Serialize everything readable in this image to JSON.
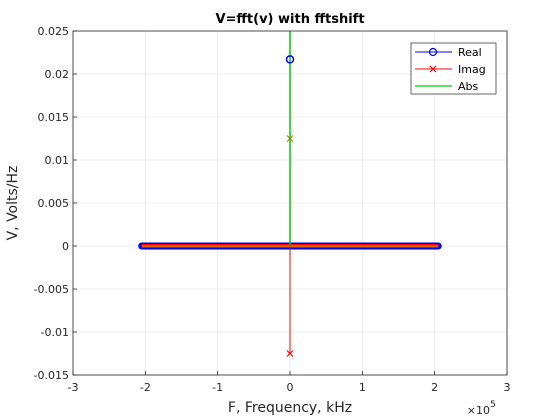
{
  "chart_data": {
    "type": "line",
    "title": "V=fft(v) with fftshift",
    "xlabel": "F, Frequency, kHz",
    "ylabel": "V, Volts/Hz",
    "x_exponent_label": "×10",
    "x_exponent_power": "5",
    "xlim": [
      -3,
      3
    ],
    "ylim": [
      -0.015,
      0.025
    ],
    "x_ticks": [
      -3,
      -2,
      -1,
      0,
      1,
      2,
      3
    ],
    "x_tick_labels": [
      "-3",
      "-2",
      "-1",
      "0",
      "1",
      "2",
      "3"
    ],
    "y_ticks": [
      -0.015,
      -0.01,
      -0.005,
      0,
      0.005,
      0.01,
      0.015,
      0.02,
      0.025
    ],
    "y_tick_labels": [
      "-0.015",
      "-0.01",
      "-0.005",
      "0",
      "0.005",
      "0.01",
      "0.015",
      "0.02",
      "0.025"
    ],
    "grid": true,
    "legend_position": "top-right",
    "x_range": [
      -2.05,
      2.05
    ],
    "series": [
      {
        "name": "Real",
        "color": "#0000ff",
        "marker": "circle",
        "baseline": 0,
        "spikes": [
          {
            "x": 0,
            "y": 0.0217
          }
        ]
      },
      {
        "name": "Imag",
        "color": "#ff0000",
        "marker": "x",
        "baseline": 0,
        "spikes": [
          {
            "x": 0,
            "y": 0.0125
          },
          {
            "x": 0,
            "y": -0.0125
          }
        ]
      },
      {
        "name": "Abs",
        "color": "#00cc00",
        "marker": "none",
        "baseline": 0,
        "spikes": [
          {
            "x": 0,
            "y": 0.025
          }
        ]
      }
    ]
  }
}
